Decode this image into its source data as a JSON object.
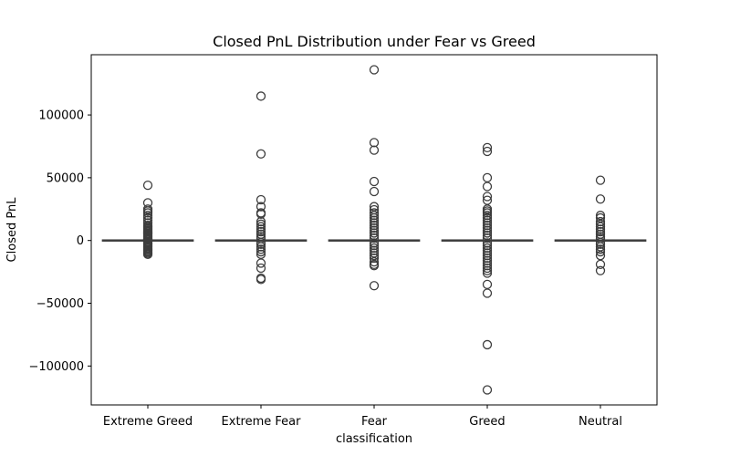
{
  "chart_data": {
    "type": "box",
    "title": "Closed PnL Distribution under Fear vs Greed",
    "xlabel": "classification",
    "ylabel": "Closed PnL",
    "categories": [
      "Extreme Greed",
      "Extreme Fear",
      "Fear",
      "Greed",
      "Neutral"
    ],
    "ylim": [
      -131000,
      148000
    ],
    "yticks": [
      {
        "value": -100000,
        "label": "−100000"
      },
      {
        "value": -50000,
        "label": "−50000"
      },
      {
        "value": 0,
        "label": "0"
      },
      {
        "value": 50000,
        "label": "50000"
      },
      {
        "value": 100000,
        "label": "100000"
      }
    ],
    "grid": false,
    "boxes": [
      {
        "category": "Extreme Greed",
        "q1": 0,
        "median": 0,
        "q3": 0,
        "whisker_low": 0,
        "whisker_high": 0,
        "outliers": [
          44000,
          30000,
          25000,
          23500,
          22000,
          20000,
          18000,
          16000,
          14000,
          12000,
          11000,
          10000,
          9000,
          8000,
          7000,
          6000,
          5000,
          4000,
          3000,
          2000,
          1000,
          -1000,
          -2000,
          -3000,
          -4000,
          -5000,
          -6000,
          -7000,
          -8000,
          -9000,
          -10000,
          -11000
        ]
      },
      {
        "category": "Extreme Fear",
        "q1": 0,
        "median": 0,
        "q3": 0,
        "whisker_low": 0,
        "whisker_high": 0,
        "outliers": [
          115000,
          69000,
          32500,
          27000,
          22000,
          21000,
          15000,
          13000,
          11000,
          9000,
          7000,
          5000,
          3000,
          1500,
          -1500,
          -3000,
          -5000,
          -7000,
          -9000,
          -11000,
          -18000,
          -22000,
          -30000,
          -31000
        ]
      },
      {
        "category": "Fear",
        "q1": 0,
        "median": 0,
        "q3": 0,
        "whisker_low": 0,
        "whisker_high": 0,
        "outliers": [
          136000,
          78000,
          72000,
          47000,
          39000,
          27000,
          24500,
          22000,
          20000,
          18000,
          16000,
          14000,
          12000,
          10000,
          8000,
          6000,
          4000,
          2000,
          -2000,
          -4000,
          -6000,
          -8000,
          -10000,
          -12000,
          -14000,
          -17000,
          -19000,
          -20000,
          -36000
        ]
      },
      {
        "category": "Greed",
        "q1": 0,
        "median": 0,
        "q3": 0,
        "whisker_low": 0,
        "whisker_high": 0,
        "outliers": [
          74000,
          71000,
          50000,
          43000,
          35000,
          32000,
          25000,
          23500,
          22000,
          20000,
          18000,
          16000,
          14000,
          12000,
          10000,
          8000,
          6000,
          4000,
          2000,
          -2000,
          -4000,
          -6000,
          -8000,
          -10000,
          -12000,
          -14000,
          -16000,
          -18000,
          -20000,
          -22000,
          -24000,
          -26000,
          -35000,
          -42000,
          -83000,
          -119000
        ]
      },
      {
        "category": "Neutral",
        "q1": 0,
        "median": 0,
        "q3": 0,
        "whisker_low": 0,
        "whisker_high": 0,
        "outliers": [
          48000,
          33000,
          20000,
          18000,
          15000,
          13000,
          11000,
          9000,
          7000,
          5000,
          3000,
          1500,
          -1500,
          -3000,
          -5000,
          -7000,
          -9000,
          -12000,
          -19000,
          -24000
        ]
      }
    ]
  }
}
